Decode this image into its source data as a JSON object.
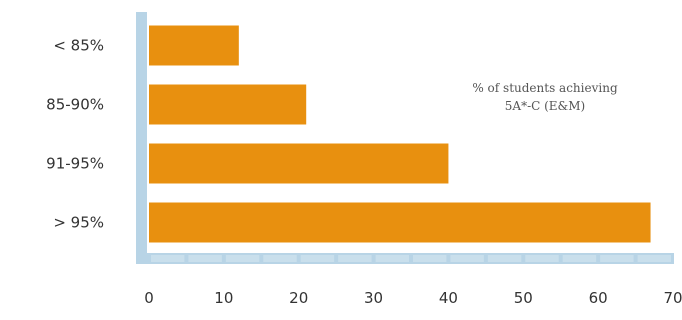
{
  "chart_data": {
    "type": "bar",
    "orientation": "horizontal",
    "categories": [
      "< 85%",
      "85-90%",
      "91-95%",
      "> 95%"
    ],
    "values": [
      12,
      21,
      40,
      67
    ],
    "xlim": [
      0,
      70
    ],
    "xticks": [
      "0",
      "10",
      "20",
      "30",
      "40",
      "50",
      "60",
      "70"
    ],
    "annotation": [
      "% of students achieving",
      "5A*-C (E&M)"
    ],
    "grid": false,
    "colors": {
      "bar": "#E8900F",
      "axis": "#B8D4E6",
      "axis_segment": "#C9DFEC"
    }
  }
}
